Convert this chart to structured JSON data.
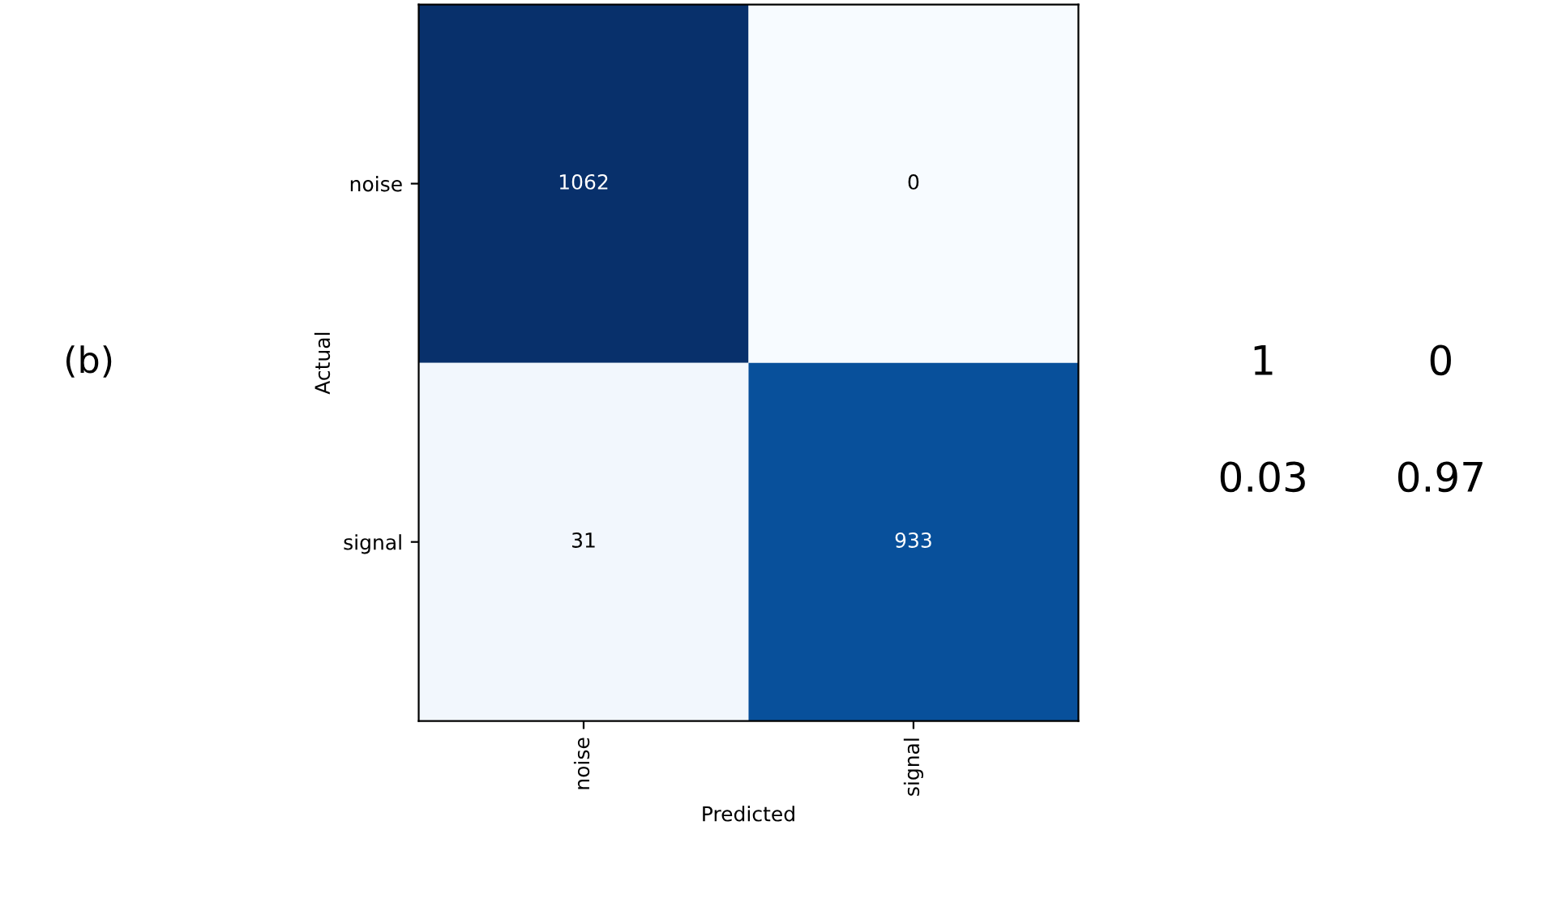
{
  "chart_data": [
    {
      "type": "heatmap",
      "categories": [
        "noise",
        "signal"
      ],
      "y_categories": [
        "noise",
        "signal"
      ],
      "cells": [
        [
          1062,
          0
        ],
        [
          31,
          933
        ]
      ],
      "xlabel": "Predicted",
      "ylabel": "Actual",
      "data_labels": true,
      "annotations": [
        "(b)"
      ]
    },
    {
      "type": "other",
      "annotations": [
        "1",
        "0",
        "0.03",
        "0.97"
      ]
    }
  ]
}
